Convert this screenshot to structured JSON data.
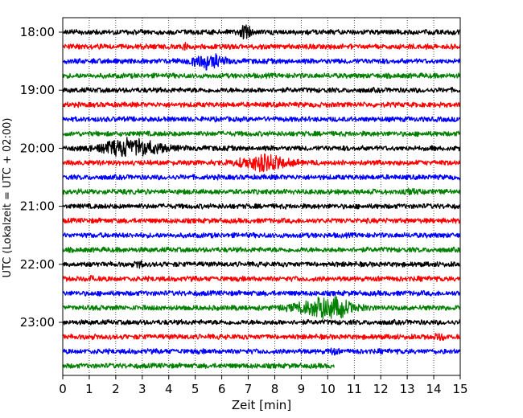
{
  "chart_data": {
    "type": "line",
    "title": "",
    "xlabel": "Zeit  [min]",
    "ylabel": "UTC (Lokalzeit = UTC + 02:00)",
    "xlim": [
      0,
      15
    ],
    "x_ticks": [
      "0",
      "1",
      "2",
      "3",
      "4",
      "5",
      "6",
      "7",
      "8",
      "9",
      "10",
      "11",
      "12",
      "13",
      "14",
      "15"
    ],
    "y_ticks": [
      "18:00",
      "19:00",
      "20:00",
      "21:00",
      "22:00",
      "23:00"
    ],
    "grid": "vertical dotted",
    "trace_colors": [
      "#000000",
      "#ff0000",
      "#0000ff",
      "#008000"
    ],
    "traces": [
      {
        "start": "18:00",
        "color": "#000000",
        "events": [
          {
            "t": 6.9,
            "amp": 1.0,
            "dur": 0.5
          }
        ]
      },
      {
        "start": "18:15",
        "color": "#ff0000",
        "events": [
          {
            "t": 4.6,
            "amp": 0.55,
            "dur": 0.2
          }
        ]
      },
      {
        "start": "18:30",
        "color": "#0000ff",
        "events": [
          {
            "t": 5.5,
            "amp": 1.0,
            "dur": 1.4
          }
        ]
      },
      {
        "start": "18:45",
        "color": "#008000",
        "events": []
      },
      {
        "start": "19:00",
        "color": "#000000",
        "events": []
      },
      {
        "start": "19:15",
        "color": "#ff0000",
        "events": []
      },
      {
        "start": "19:30",
        "color": "#0000ff",
        "events": []
      },
      {
        "start": "19:45",
        "color": "#008000",
        "events": []
      },
      {
        "start": "20:00",
        "color": "#000000",
        "events": [
          {
            "t": 2.6,
            "amp": 1.3,
            "dur": 2.8
          }
        ]
      },
      {
        "start": "20:15",
        "color": "#ff0000",
        "events": [
          {
            "t": 7.6,
            "amp": 1.1,
            "dur": 2.2
          }
        ]
      },
      {
        "start": "20:30",
        "color": "#0000ff",
        "events": []
      },
      {
        "start": "20:45",
        "color": "#008000",
        "events": [
          {
            "t": 13.1,
            "amp": 0.35,
            "dur": 0.3
          }
        ]
      },
      {
        "start": "21:00",
        "color": "#000000",
        "events": []
      },
      {
        "start": "21:15",
        "color": "#ff0000",
        "events": []
      },
      {
        "start": "21:30",
        "color": "#0000ff",
        "events": []
      },
      {
        "start": "21:45",
        "color": "#008000",
        "events": []
      },
      {
        "start": "22:00",
        "color": "#000000",
        "events": [
          {
            "t": 2.9,
            "amp": 0.45,
            "dur": 0.3
          }
        ]
      },
      {
        "start": "22:15",
        "color": "#ff0000",
        "events": [
          {
            "t": 1.1,
            "amp": 0.65,
            "dur": 0.15
          }
        ]
      },
      {
        "start": "22:30",
        "color": "#0000ff",
        "events": []
      },
      {
        "start": "22:45",
        "color": "#008000",
        "events": [
          {
            "t": 9.9,
            "amp": 1.7,
            "dur": 2.4
          }
        ]
      },
      {
        "start": "23:00",
        "color": "#000000",
        "events": []
      },
      {
        "start": "23:15",
        "color": "#ff0000",
        "events": [
          {
            "t": 14.2,
            "amp": 0.35,
            "dur": 0.5
          }
        ]
      },
      {
        "start": "23:30",
        "color": "#0000ff",
        "events": [
          {
            "t": 10.2,
            "amp": 0.3,
            "dur": 0.4
          }
        ]
      },
      {
        "start": "23:45",
        "color": "#008000",
        "events": [],
        "end": 10.25
      }
    ]
  }
}
